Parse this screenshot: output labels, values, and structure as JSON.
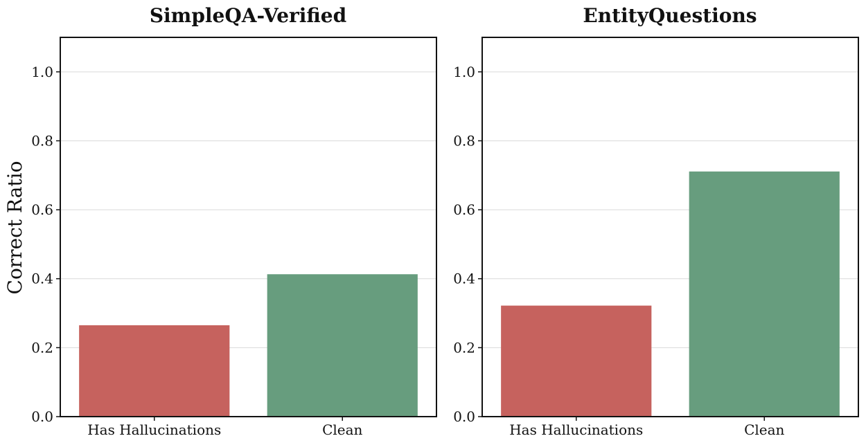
{
  "chart_data": [
    {
      "type": "bar",
      "title": "SimpleQA-Verified",
      "categories": [
        "Has Hallucinations",
        "Clean"
      ],
      "values": [
        0.265,
        0.413
      ],
      "colors": [
        "#c6625e",
        "#679d7e"
      ],
      "ylabel": "Correct Ratio",
      "ylim": [
        0,
        1.1
      ],
      "yticks": [
        0.0,
        0.2,
        0.4,
        0.6,
        0.8,
        1.0
      ],
      "ytick_labels": [
        "0.0",
        "0.2",
        "0.4",
        "0.6",
        "0.8",
        "1.0"
      ],
      "grid": "y"
    },
    {
      "type": "bar",
      "title": "EntityQuestions",
      "categories": [
        "Has Hallucinations",
        "Clean"
      ],
      "values": [
        0.322,
        0.711
      ],
      "colors": [
        "#c6625e",
        "#679d7e"
      ],
      "ylabel": "",
      "ylim": [
        0,
        1.1
      ],
      "yticks": [
        0.0,
        0.2,
        0.4,
        0.6,
        0.8,
        1.0
      ],
      "ytick_labels": [
        "0.0",
        "0.2",
        "0.4",
        "0.6",
        "0.8",
        "1.0"
      ],
      "grid": "y"
    }
  ]
}
